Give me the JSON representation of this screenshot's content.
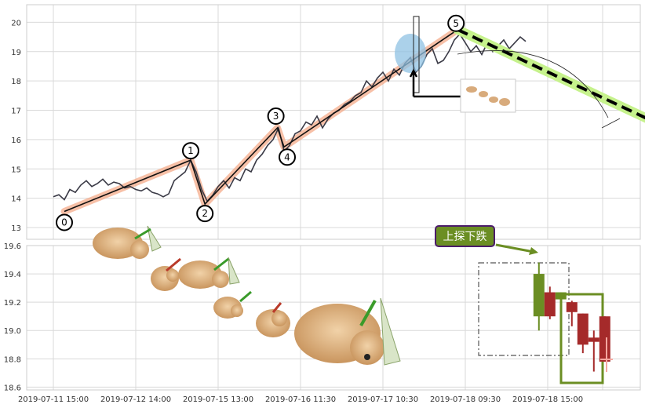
{
  "chart_data": [
    {
      "type": "line",
      "panel": "top",
      "ylim": [
        12.6,
        20.6
      ],
      "y_ticks": [
        13,
        14,
        15,
        16,
        17,
        18,
        19,
        20
      ],
      "grid": true,
      "price_series": [
        [
          0.0,
          14.05
        ],
        [
          0.5,
          14.12
        ],
        [
          1.0,
          13.95
        ],
        [
          1.5,
          14.3
        ],
        [
          2.0,
          14.2
        ],
        [
          2.5,
          14.45
        ],
        [
          3.0,
          14.6
        ],
        [
          3.5,
          14.4
        ],
        [
          4.0,
          14.5
        ],
        [
          4.5,
          14.65
        ],
        [
          5.0,
          14.45
        ],
        [
          5.5,
          14.55
        ],
        [
          6.0,
          14.5
        ],
        [
          6.5,
          14.35
        ],
        [
          7.0,
          14.4
        ],
        [
          7.5,
          14.3
        ],
        [
          8.0,
          14.25
        ],
        [
          8.5,
          14.35
        ],
        [
          9.0,
          14.2
        ],
        [
          9.5,
          14.15
        ],
        [
          10.0,
          14.05
        ],
        [
          10.5,
          14.15
        ],
        [
          11.0,
          14.6
        ],
        [
          11.5,
          14.75
        ],
        [
          12.0,
          14.9
        ],
        [
          12.5,
          15.3
        ],
        [
          13.0,
          14.9
        ],
        [
          13.5,
          14.3
        ],
        [
          14.0,
          13.9
        ],
        [
          14.5,
          14.1
        ],
        [
          15.0,
          14.4
        ],
        [
          15.5,
          14.6
        ],
        [
          16.0,
          14.35
        ],
        [
          16.5,
          14.7
        ],
        [
          17.0,
          14.6
        ],
        [
          17.5,
          15.0
        ],
        [
          18.0,
          14.9
        ],
        [
          18.5,
          15.3
        ],
        [
          19.0,
          15.5
        ],
        [
          19.5,
          15.8
        ],
        [
          20.0,
          16.0
        ],
        [
          20.5,
          16.4
        ],
        [
          21.0,
          15.6
        ],
        [
          21.5,
          15.8
        ],
        [
          22.0,
          16.2
        ],
        [
          22.5,
          16.3
        ],
        [
          23.0,
          16.6
        ],
        [
          23.5,
          16.5
        ],
        [
          24.0,
          16.8
        ],
        [
          24.5,
          16.4
        ],
        [
          25.0,
          16.7
        ],
        [
          25.5,
          16.9
        ],
        [
          26.0,
          17.0
        ],
        [
          26.5,
          17.2
        ],
        [
          27.0,
          17.3
        ],
        [
          27.5,
          17.5
        ],
        [
          28.0,
          17.6
        ],
        [
          28.5,
          18.0
        ],
        [
          29.0,
          17.8
        ],
        [
          29.5,
          18.1
        ],
        [
          30.0,
          18.3
        ],
        [
          30.5,
          18.0
        ],
        [
          31.0,
          18.4
        ],
        [
          31.5,
          18.2
        ],
        [
          32.0,
          18.6
        ],
        [
          32.5,
          18.8
        ],
        [
          33.0,
          18.3
        ],
        [
          33.5,
          18.5
        ],
        [
          34.0,
          18.9
        ],
        [
          34.5,
          19.1
        ],
        [
          35.0,
          18.6
        ],
        [
          35.5,
          18.7
        ],
        [
          36.0,
          19.0
        ],
        [
          36.5,
          19.4
        ],
        [
          37.0,
          19.6
        ],
        [
          37.5,
          19.3
        ],
        [
          38.0,
          19.0
        ],
        [
          38.5,
          19.2
        ],
        [
          39.0,
          18.9
        ],
        [
          39.5,
          19.3
        ],
        [
          40.0,
          19.0
        ],
        [
          40.5,
          19.2
        ],
        [
          41.0,
          19.4
        ],
        [
          41.5,
          19.1
        ],
        [
          42.0,
          19.3
        ],
        [
          42.5,
          19.5
        ],
        [
          43.0,
          19.35
        ]
      ],
      "waves": [
        {
          "label": "0",
          "x": 1.0,
          "y": 13.55
        },
        {
          "label": "1",
          "x": 12.5,
          "y": 15.3
        },
        {
          "label": "2",
          "x": 13.8,
          "y": 13.8
        },
        {
          "label": "3",
          "x": 20.4,
          "y": 16.4
        },
        {
          "label": "4",
          "x": 21.0,
          "y": 15.75
        },
        {
          "label": "5",
          "x": 36.8,
          "y": 19.75
        }
      ],
      "forecast_line": {
        "from": [
          36.8,
          19.75
        ],
        "to": [
          55.0,
          16.55
        ]
      }
    },
    {
      "type": "candlestick",
      "panel": "bottom",
      "ylim": [
        18.58,
        19.6
      ],
      "y_ticks": [
        18.6,
        18.8,
        19.0,
        19.2,
        19.4,
        19.6
      ],
      "grid": true,
      "candles": [
        {
          "x": 44.2,
          "open": 19.1,
          "close": 19.4,
          "high": 19.48,
          "low": 19.0
        },
        {
          "x": 45.2,
          "open": 19.27,
          "close": 19.1,
          "high": 19.31,
          "low": 19.08
        },
        {
          "x": 46.2,
          "open": 19.22,
          "close": 19.27,
          "high": 19.27,
          "low": 19.2
        },
        {
          "x": 47.2,
          "open": 19.2,
          "close": 19.13,
          "high": 19.21,
          "low": 19.03
        },
        {
          "x": 48.2,
          "open": 19.12,
          "close": 18.9,
          "high": 19.12,
          "low": 18.84
        },
        {
          "x": 49.2,
          "open": 18.95,
          "close": 18.92,
          "high": 19.0,
          "low": 18.71
        },
        {
          "x": 50.2,
          "open": 19.1,
          "close": 18.78,
          "high": 19.1,
          "low": 18.78
        }
      ],
      "annotation_text": "上探下跌",
      "colors": {
        "up": "#6b8e23",
        "down": "#a52a2a"
      }
    }
  ],
  "x_tick_labels": [
    "2019-07-11 15:00",
    "2019-07-12 14:00",
    "2019-07-15 13:00",
    "2019-07-16 11:30",
    "2019-07-17 10:30",
    "2019-07-18 09:30",
    "2019-07-18 15:00"
  ],
  "x_tick_positions": [
    0,
    7.5,
    15,
    22.5,
    30,
    37.5,
    45
  ]
}
